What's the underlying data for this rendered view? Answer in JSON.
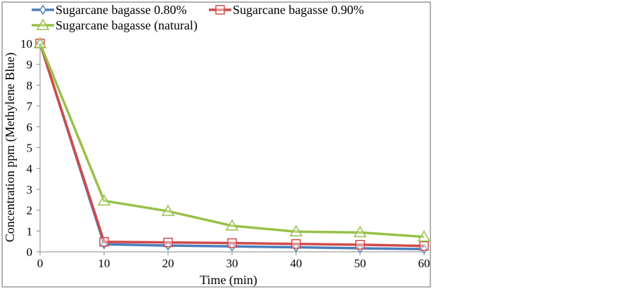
{
  "chart_data": {
    "type": "line",
    "title": "",
    "xlabel": "Time (min)",
    "ylabel": "Concentration ppm (Methylene Blue)",
    "x": [
      0,
      10,
      20,
      30,
      40,
      50,
      60
    ],
    "xlim": [
      0,
      60
    ],
    "ylim": [
      0,
      10
    ],
    "xticks": [
      0,
      10,
      20,
      30,
      40,
      50,
      60
    ],
    "yticks": [
      0,
      1,
      2,
      3,
      4,
      5,
      6,
      7,
      8,
      9,
      10
    ],
    "grid": false,
    "legend_position": "top",
    "series": [
      {
        "name": "Sugarcane bagasse 0.80%",
        "values": [
          10,
          0.36,
          0.3,
          0.26,
          0.22,
          0.17,
          0.13
        ],
        "color": "#4a7ebb",
        "marker": "diamond"
      },
      {
        "name": "Sugarcane bagasse 0.90%",
        "values": [
          10,
          0.48,
          0.45,
          0.42,
          0.38,
          0.34,
          0.28
        ],
        "color": "#d04a4a",
        "marker": "square"
      },
      {
        "name": "Sugarcane bagasse (natural)",
        "values": [
          10,
          2.45,
          1.95,
          1.25,
          0.97,
          0.93,
          0.72
        ],
        "color": "#98c048",
        "marker": "triangle"
      }
    ]
  }
}
